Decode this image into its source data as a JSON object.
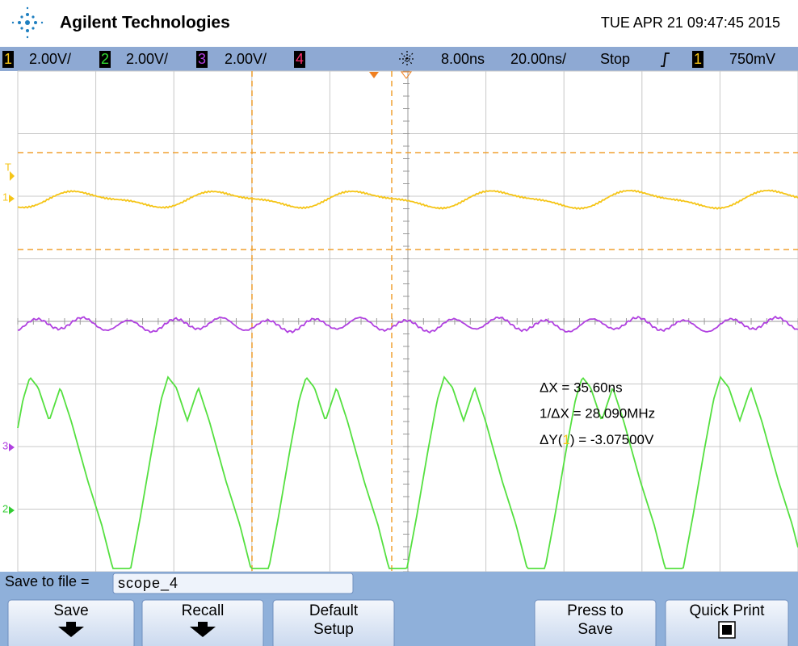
{
  "header": {
    "brand": "Agilent Technologies",
    "datetime": "TUE APR 21 09:47:45 2015"
  },
  "status": {
    "channels": [
      {
        "number": "1",
        "scale": "2.00V/"
      },
      {
        "number": "2",
        "scale": "2.00V/"
      },
      {
        "number": "3",
        "scale": "2.00V/"
      },
      {
        "number": "4"
      }
    ],
    "delay": "8.00ns",
    "timebase": "20.00ns/",
    "run_state": "Stop",
    "trigger_source": "1",
    "trigger_level": "750mV"
  },
  "markers": {
    "trigger": "T",
    "ch1": "1",
    "ch3": "3",
    "ch2": "2"
  },
  "measurements": {
    "delta_x": "ΔX = 35.60ns",
    "inv_delta_x": "1/ΔX = 28.090MHz",
    "delta_y_prefix": "ΔY(",
    "delta_y_channel": "1",
    "delta_y_suffix": ") = -3.07500V"
  },
  "softkeys": {
    "file_label": "Save to file =",
    "file_name": "scope_4",
    "buttons": [
      {
        "line1": "Save"
      },
      {
        "line1": "Recall"
      },
      {
        "line1": "Default",
        "line2": "Setup"
      },
      {
        "line1": "Press to",
        "line2": "Save"
      },
      {
        "line1": "Quick Print"
      }
    ]
  }
}
